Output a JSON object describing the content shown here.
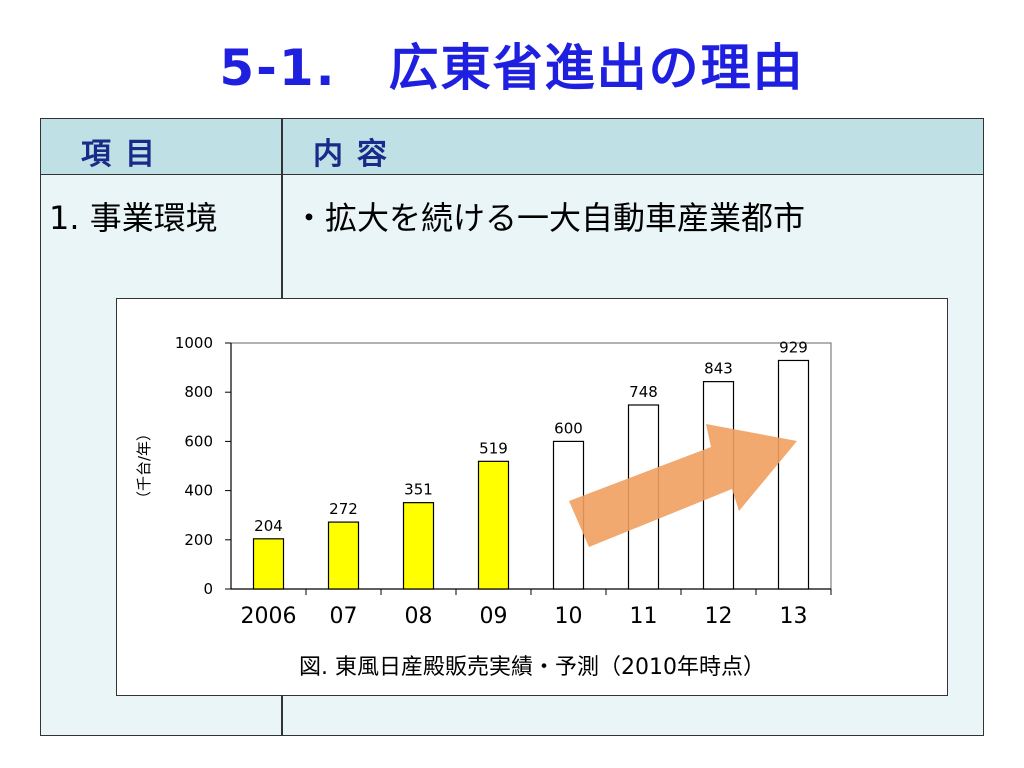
{
  "slide": {
    "title": "5-1.　広東省進出の理由"
  },
  "table": {
    "header": {
      "col1": "項目",
      "col2": "内容"
    },
    "row1": {
      "item": "1. 事業環境",
      "content": "・拡大を続ける一大自動車産業都市"
    }
  },
  "chart_caption": "図. 東風日産殿販売実績・予測（2010年時点）",
  "colors": {
    "title": "#1f1fe0",
    "actual_bar": "#ffff00",
    "forecast_bar": "#ffffff",
    "arrow": "#f0a060",
    "header_bg": "#bfe0e4",
    "body_bg": "#e9f5f7"
  },
  "chart_data": {
    "type": "bar",
    "categories": [
      "2006",
      "07",
      "08",
      "09",
      "10",
      "11",
      "12",
      "13"
    ],
    "values": [
      204,
      272,
      351,
      519,
      600,
      748,
      843,
      929
    ],
    "data_labels": [
      "204",
      "272",
      "351",
      "519",
      "600",
      "748",
      "843",
      "929"
    ],
    "ylabel": "（千台/年）",
    "ylim": [
      0,
      1000
    ],
    "yticks": [
      0,
      200,
      400,
      600,
      800,
      1000
    ],
    "ytick_labels": [
      "0",
      "200",
      "400",
      "600",
      "800",
      "1000"
    ],
    "actual_count": 4,
    "grid": false,
    "annotation": "upward trend arrow over forecast bars"
  }
}
